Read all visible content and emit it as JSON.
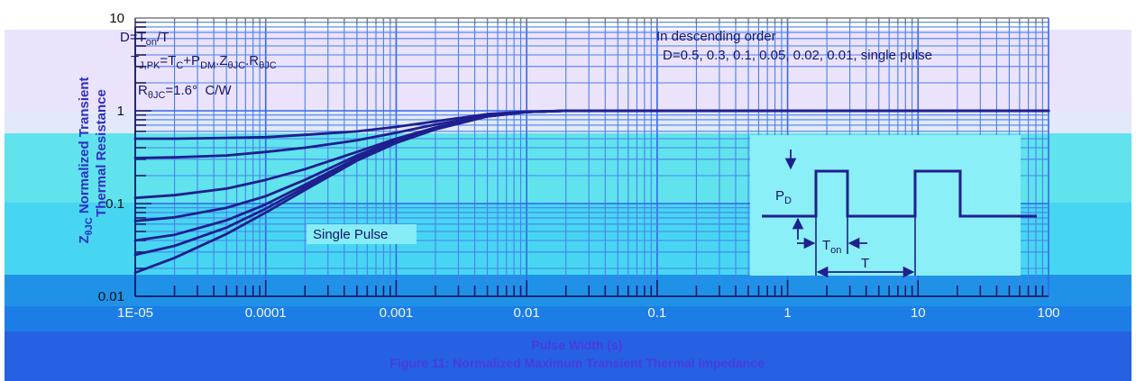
{
  "colors": {
    "curve": "#1f1f8f",
    "grid_major": "#3567e6",
    "grid_minor": "#4a7fee",
    "axis": "#1a1a66",
    "frame_top": "#7d7d7d"
  },
  "notes": {
    "duty_cycle": [
      "D=T",
      "on",
      "/T"
    ],
    "peak_junction": [
      "T",
      "J,PK",
      "=T",
      "C",
      "+P",
      "DM",
      ".Z",
      "θJC",
      ".R",
      "θJC"
    ],
    "thermal_resistance": [
      "R",
      "θJC",
      "=1.6°  C/W"
    ],
    "order_title": "In descending order",
    "order_list": "D=0.5, 0.3, 0.1, 0.05, 0.02, 0.01, single pulse"
  },
  "pulse_diagram": {
    "power_label": [
      "P",
      "D"
    ],
    "on_time_label": [
      "T",
      "on"
    ],
    "period_label": "T"
  },
  "chart_data": {
    "type": "line",
    "title": "Figure 11: Normalized Maximum Transient Thermal Impedance",
    "xlabel": "Pulse Width (s)",
    "ylabel": [
      "Z",
      "θJC",
      " Normalized Transient",
      "Thermal Resistance"
    ],
    "x_scale": "log",
    "y_scale": "log",
    "xlim": [
      1e-05,
      100
    ],
    "ylim": [
      0.01,
      10
    ],
    "x_tick_labels": [
      "1E-05",
      "0.0001",
      "0.001",
      "0.01",
      "0.1",
      "1",
      "10",
      "100"
    ],
    "y_tick_labels": [
      "0.01",
      "0.1",
      "1",
      "10"
    ],
    "grid": true,
    "x": [
      1e-05,
      2e-05,
      5e-05,
      0.0001,
      0.0002,
      0.0005,
      0.001,
      0.002,
      0.005,
      0.01,
      0.02,
      0.1,
      1,
      10,
      100
    ],
    "series": [
      {
        "duty": 0.5,
        "values": [
          0.5,
          0.5,
          0.51,
          0.52,
          0.55,
          0.6,
          0.67,
          0.77,
          0.92,
          0.98,
          1.0,
          1.0,
          1.0,
          1.0,
          1.0
        ]
      },
      {
        "duty": 0.3,
        "values": [
          0.31,
          0.315,
          0.33,
          0.36,
          0.4,
          0.48,
          0.58,
          0.71,
          0.89,
          0.97,
          1.0,
          1.0,
          1.0,
          1.0,
          1.0
        ]
      },
      {
        "duty": 0.1,
        "values": [
          0.115,
          0.123,
          0.145,
          0.18,
          0.235,
          0.36,
          0.5,
          0.66,
          0.88,
          0.97,
          1.0,
          1.0,
          1.0,
          1.0,
          1.0
        ]
      },
      {
        "duty": 0.05,
        "values": [
          0.065,
          0.071,
          0.09,
          0.12,
          0.18,
          0.33,
          0.48,
          0.65,
          0.87,
          0.97,
          1.0,
          1.0,
          1.0,
          1.0,
          1.0
        ]
      },
      {
        "duty": 0.02,
        "values": [
          0.04,
          0.046,
          0.066,
          0.098,
          0.16,
          0.31,
          0.47,
          0.64,
          0.87,
          0.97,
          1.0,
          1.0,
          1.0,
          1.0,
          1.0
        ]
      },
      {
        "duty": 0.01,
        "values": [
          0.028,
          0.035,
          0.055,
          0.088,
          0.15,
          0.3,
          0.46,
          0.64,
          0.87,
          0.97,
          1.0,
          1.0,
          1.0,
          1.0,
          1.0
        ]
      },
      {
        "name": "Single Pulse",
        "values": [
          0.018,
          0.026,
          0.047,
          0.08,
          0.14,
          0.29,
          0.45,
          0.63,
          0.87,
          0.97,
          1.0,
          1.0,
          1.0,
          1.0,
          1.0
        ]
      }
    ]
  }
}
